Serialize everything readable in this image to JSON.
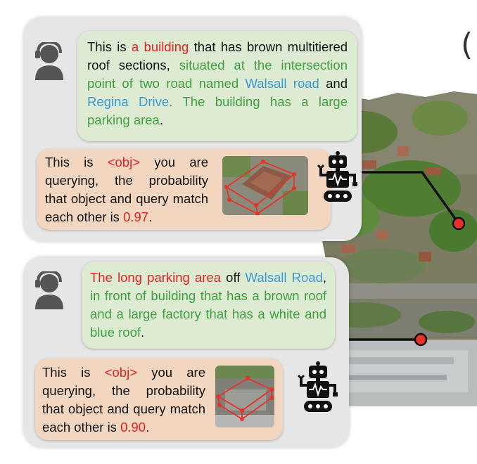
{
  "figure": {
    "stray_glyph": "(",
    "panel1": {
      "query": {
        "pre": "This is ",
        "target": "a building",
        "mid": " that has brown multitiered roof sections, ",
        "green1": "situated at the intersection point of two road named",
        "space1": " ",
        "road1": "Walsall road",
        "and": " and ",
        "road2": "Regina Drive",
        "green2": ". The building has a large parking area",
        "end": "."
      },
      "answer": {
        "pre": "This is ",
        "obj": "<obj>",
        "mid": " you are querying, the probability that object and query match each other is ",
        "prob": "0.97",
        "end": "."
      }
    },
    "panel2": {
      "query": {
        "target": "The long parking area",
        "mid": " off ",
        "road": "Walsall Road",
        "comma": ",",
        "green": " in front of building that has a brown roof and a large factory that has a white and blue roof",
        "end": "."
      },
      "answer": {
        "pre": "This is ",
        "obj": "<obj>",
        "mid": " you are querying, the probability that object and query match each other is ",
        "prob": "0.90",
        "end": "."
      }
    },
    "colors": {
      "panel": "#e6e6e6",
      "query_bubble": "#dcebd2",
      "answer_bubble": "#f3d6c0",
      "target_red": "#e32222",
      "context_green": "#41a040",
      "road_blue": "#3a9ad6",
      "connector_dot": "#e8322a"
    },
    "icons": [
      "user-avatar-icon",
      "robot-icon"
    ]
  }
}
